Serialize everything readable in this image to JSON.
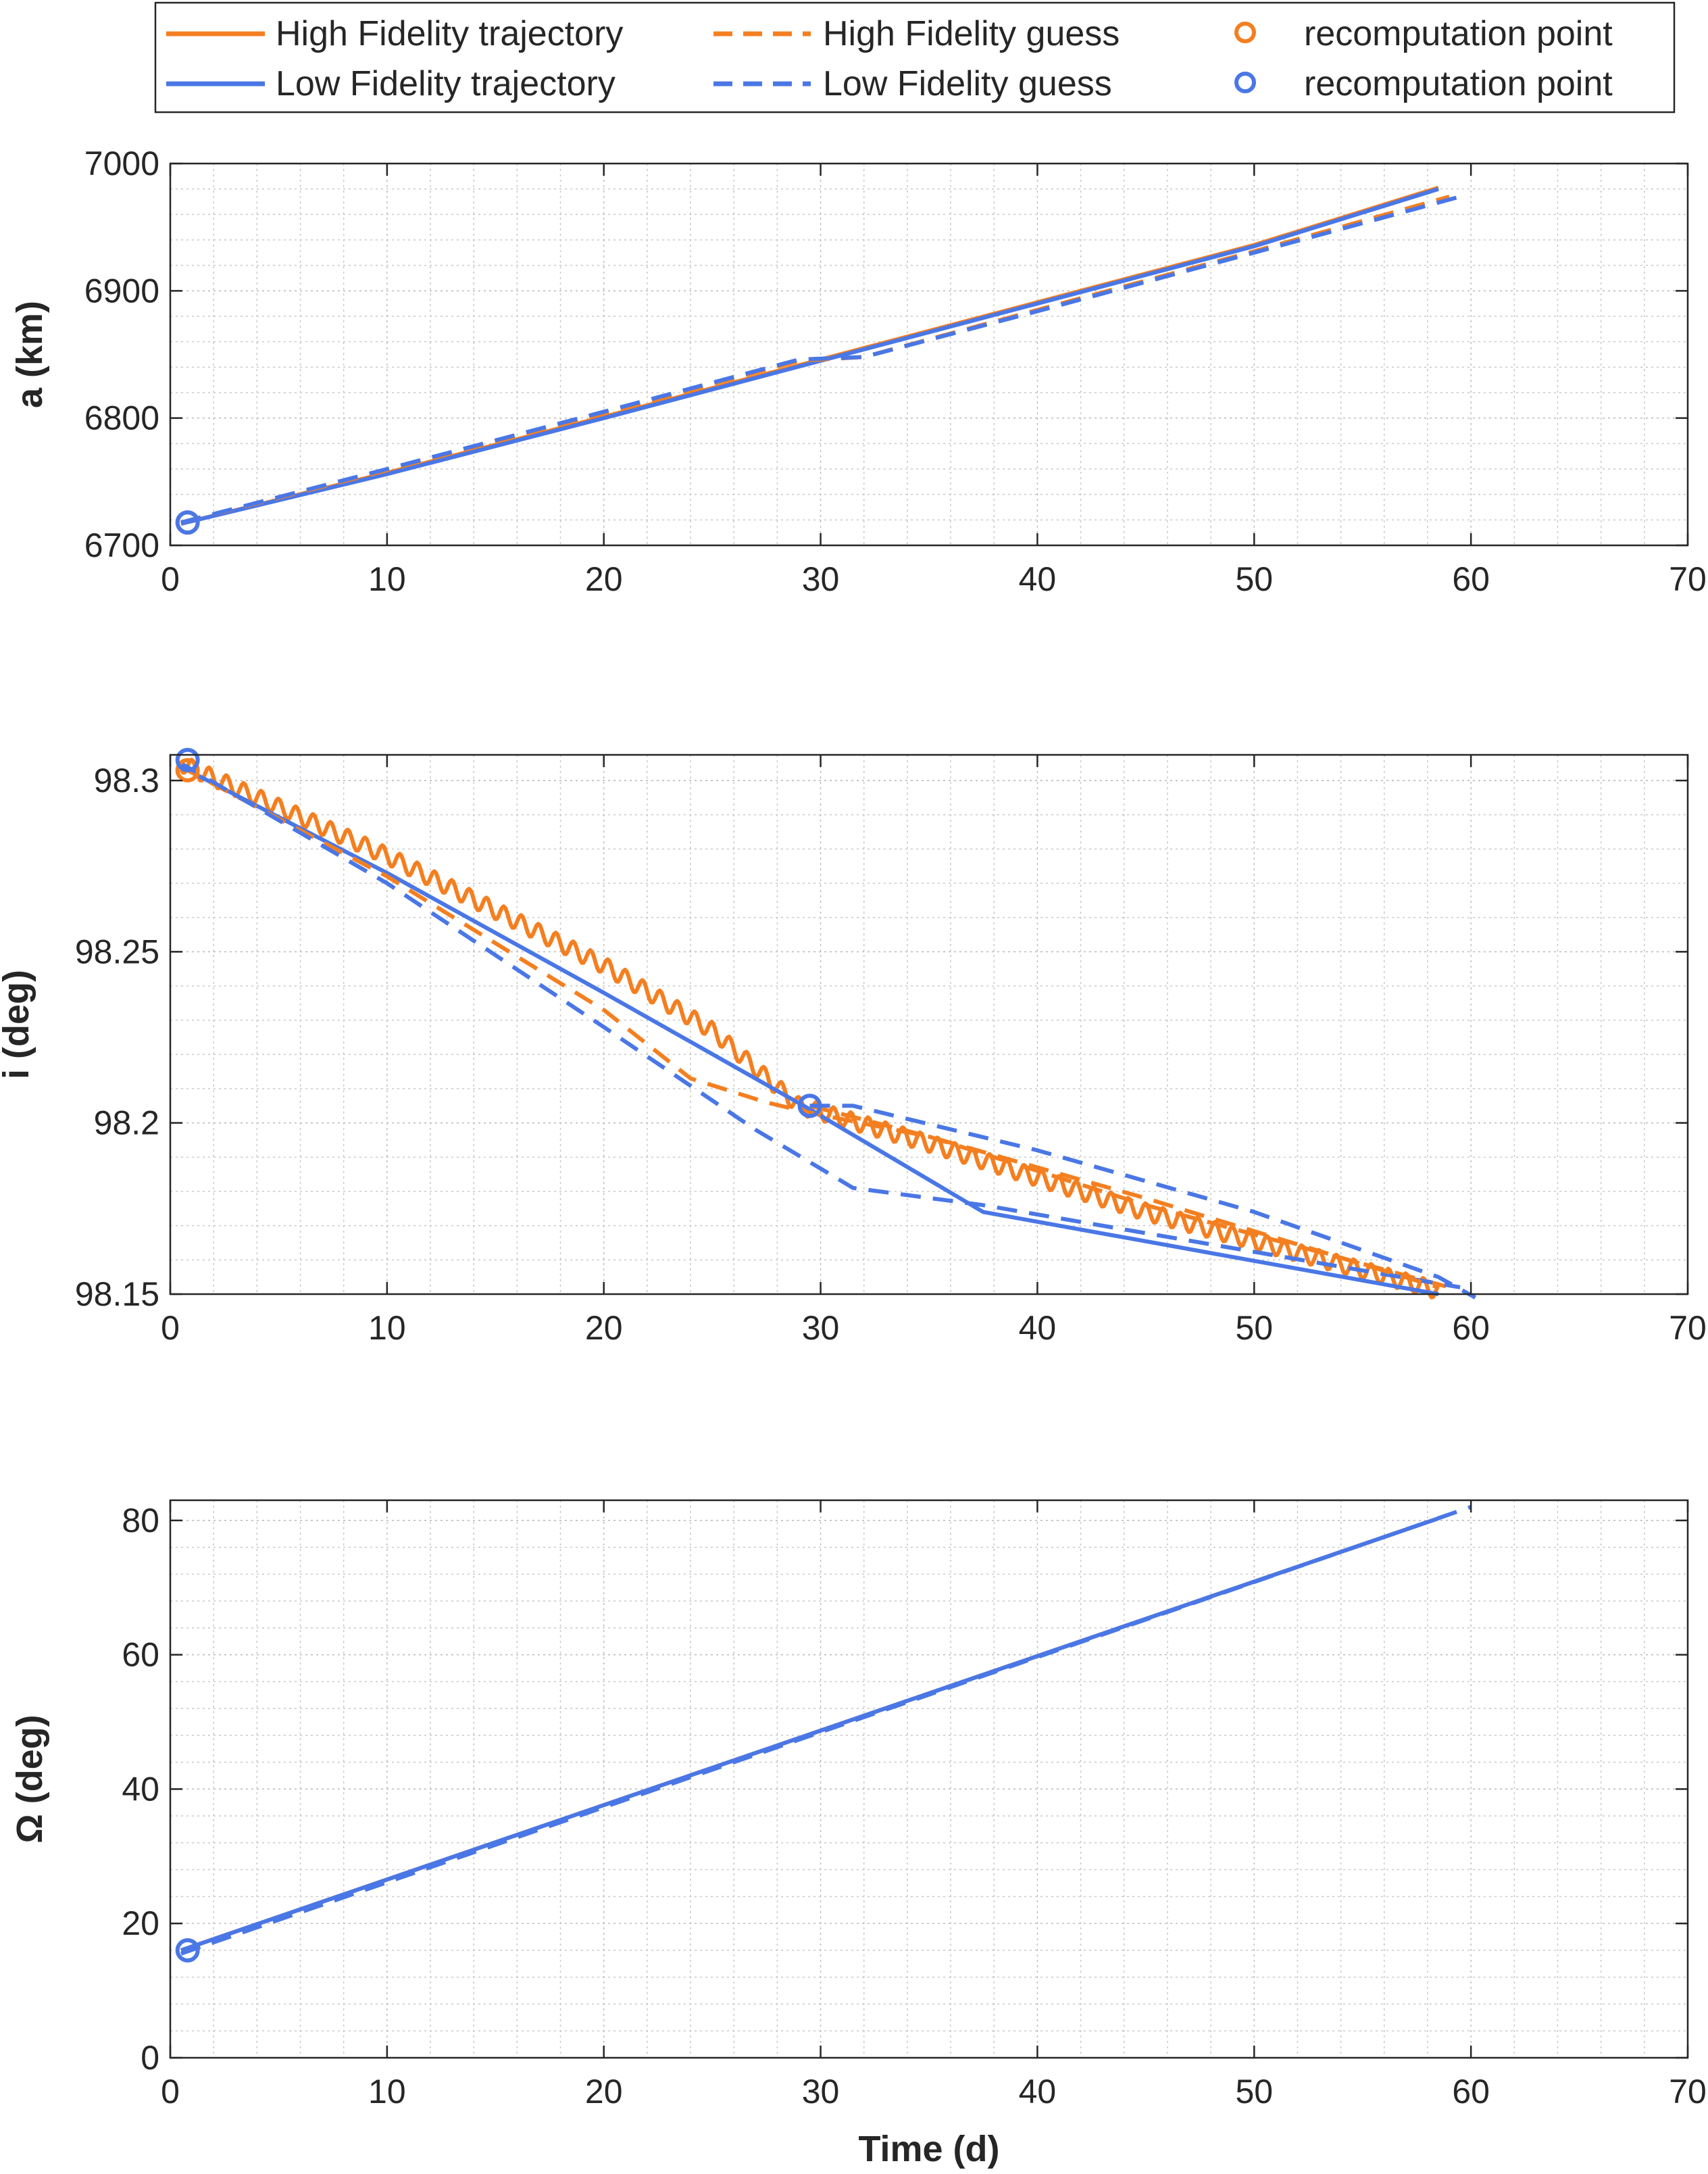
{
  "chart_data": [
    {
      "type": "line",
      "id": "sma",
      "ylabel": "a (km)",
      "xlabel": "",
      "xlim": [
        0,
        70
      ],
      "ylim": [
        6700,
        7000
      ],
      "xticks": [
        0,
        10,
        20,
        30,
        40,
        50,
        60,
        70
      ],
      "yticks": [
        6700,
        6800,
        6900,
        7000
      ],
      "ytick_labels": [
        "6700",
        "6800",
        "6900",
        "7000"
      ],
      "grid": "on (major and minor)",
      "series": [
        {
          "name": "High Fidelity trajectory",
          "style": "solid",
          "color": "#f47f20",
          "x": [
            0.5,
            10,
            20,
            30,
            40,
            50,
            58.5
          ],
          "y": [
            6717,
            6757,
            6801,
            6846,
            6891,
            6936,
            6981
          ]
        },
        {
          "name": "Low Fidelity trajectory",
          "style": "solid",
          "color": "#4a77e6",
          "x": [
            0.5,
            10,
            20,
            30,
            40,
            50,
            58.5
          ],
          "y": [
            6717,
            6756,
            6800,
            6845,
            6890,
            6935,
            6980
          ]
        },
        {
          "name": "High Fidelity guess",
          "style": "dashed",
          "color": "#f47f20",
          "x": [
            0.5,
            10,
            20,
            29,
            32,
            40,
            50,
            59
          ],
          "y": [
            6718,
            6759,
            6804,
            6845,
            6848,
            6885,
            6931,
            6974
          ]
        },
        {
          "name": "Low Fidelity guess",
          "style": "dashed",
          "color": "#4a77e6",
          "x": [
            0.5,
            10,
            20,
            29,
            32,
            40,
            50,
            59.5
          ],
          "y": [
            6718,
            6760,
            6805,
            6846,
            6848,
            6884,
            6930,
            6974
          ]
        },
        {
          "name": "recomputation point",
          "style": "marker",
          "color": "#f47f20",
          "x": [
            0.8
          ],
          "y": [
            6718
          ]
        },
        {
          "name": "recomputation point",
          "style": "marker",
          "color": "#4a77e6",
          "x": [
            0.8
          ],
          "y": [
            6718
          ]
        }
      ]
    },
    {
      "type": "line",
      "id": "incl",
      "ylabel": "i (deg)",
      "xlabel": "",
      "xlim": [
        0,
        70
      ],
      "ylim": [
        98.15,
        98.3
      ],
      "y_visible_max": 98.3075,
      "xticks": [
        0,
        10,
        20,
        30,
        40,
        50,
        60,
        70
      ],
      "yticks": [
        98.15,
        98.2,
        98.25,
        98.3
      ],
      "ytick_labels": [
        "98.15",
        "98.2",
        "98.25",
        "98.3"
      ],
      "grid": "on (major and minor)",
      "series": [
        {
          "name": "High Fidelity trajectory",
          "style": "solid-oscillating",
          "color": "#f47f20",
          "x": [
            0.5,
            10,
            20,
            25,
            29,
            35,
            45,
            58.5
          ],
          "y": [
            98.305,
            98.278,
            98.246,
            98.227,
            98.205,
            98.194,
            98.174,
            98.151
          ],
          "oscillation_amplitude": 0.0025,
          "oscillation_period": 0.8
        },
        {
          "name": "Low Fidelity trajectory",
          "style": "solid",
          "color": "#4a77e6",
          "x": [
            0.5,
            10,
            20,
            29.5,
            37.5,
            58.5
          ],
          "y": [
            98.304,
            98.273,
            98.238,
            98.204,
            98.174,
            98.15
          ]
        },
        {
          "name": "High Fidelity guess",
          "style": "dashed",
          "color": "#f47f20",
          "x": [
            0.5,
            10,
            20,
            24,
            27.5,
            29.5,
            35,
            45,
            59
          ],
          "y": [
            98.304,
            98.272,
            98.233,
            98.213,
            98.206,
            98.203,
            98.196,
            98.176,
            98.152
          ]
        },
        {
          "name": "Low Fidelity guess",
          "style": "dashed",
          "color": "#4a77e6",
          "x": [
            0.5,
            10,
            20,
            27,
            31.5,
            37.5,
            59.5
          ],
          "y": [
            98.305,
            98.27,
            98.228,
            98.198,
            98.181,
            98.176,
            98.152
          ]
        },
        {
          "name": "High Fidelity guess (restart)",
          "style": "dashed",
          "color": "#f47f20",
          "x": [
            29.5,
            35,
            45,
            58.5
          ],
          "y": [
            98.205,
            98.196,
            98.178,
            98.152
          ]
        },
        {
          "name": "Low Fidelity guess (restart)",
          "style": "dashed",
          "color": "#4a77e6",
          "x": [
            29.5,
            31.5,
            40,
            50,
            58.5,
            60.2
          ],
          "y": [
            98.205,
            98.205,
            98.192,
            98.174,
            98.155,
            98.149
          ]
        },
        {
          "name": "recomputation point",
          "style": "marker",
          "color": "#f47f20",
          "x": [
            0.8
          ],
          "y": [
            98.303
          ]
        },
        {
          "name": "recomputation point",
          "style": "marker",
          "color": "#4a77e6",
          "x": [
            0.8,
            29.5
          ],
          "y": [
            98.306,
            98.205
          ]
        }
      ]
    },
    {
      "type": "line",
      "id": "raan",
      "ylabel": "Ω (deg)",
      "xlabel": "Time (d)",
      "xlim": [
        0,
        70
      ],
      "ylim": [
        0,
        80
      ],
      "y_visible_max": 83,
      "xticks": [
        0,
        10,
        20,
        30,
        40,
        50,
        60,
        70
      ],
      "yticks": [
        0,
        20,
        40,
        60,
        80
      ],
      "ytick_labels": [
        "0",
        "20",
        "40",
        "60",
        "80"
      ],
      "grid": "on (major and minor)",
      "series": [
        {
          "name": "High Fidelity trajectory",
          "style": "solid",
          "color": "#f47f20",
          "x": [
            0.5,
            58.5
          ],
          "y": [
            16,
            80.3
          ]
        },
        {
          "name": "Low Fidelity trajectory",
          "style": "solid",
          "color": "#4a77e6",
          "x": [
            0.5,
            58.5
          ],
          "y": [
            16,
            80.3
          ]
        },
        {
          "name": "Low Fidelity guess",
          "style": "dashed",
          "color": "#4a77e6",
          "x": [
            0.5,
            60
          ],
          "y": [
            15.5,
            82
          ]
        },
        {
          "name": "recomputation point",
          "style": "marker",
          "color": "#4a77e6",
          "x": [
            0.8
          ],
          "y": [
            16
          ]
        }
      ]
    }
  ],
  "legend": {
    "placement": "top",
    "entries": [
      {
        "label": "High Fidelity trajectory",
        "style": "solid",
        "color": "#f47f20"
      },
      {
        "label": "High Fidelity guess",
        "style": "dashed",
        "color": "#f47f20"
      },
      {
        "label": "recomputation point",
        "style": "marker",
        "color": "#f47f20"
      },
      {
        "label": "Low Fidelity trajectory",
        "style": "solid",
        "color": "#4a77e6"
      },
      {
        "label": "Low Fidelity guess",
        "style": "dashed",
        "color": "#4a77e6"
      },
      {
        "label": "recomputation point",
        "style": "marker",
        "color": "#4a77e6"
      }
    ]
  },
  "colors": {
    "high_fidelity": "#f47f20",
    "low_fidelity": "#4a77e6",
    "axes": "#262626"
  }
}
